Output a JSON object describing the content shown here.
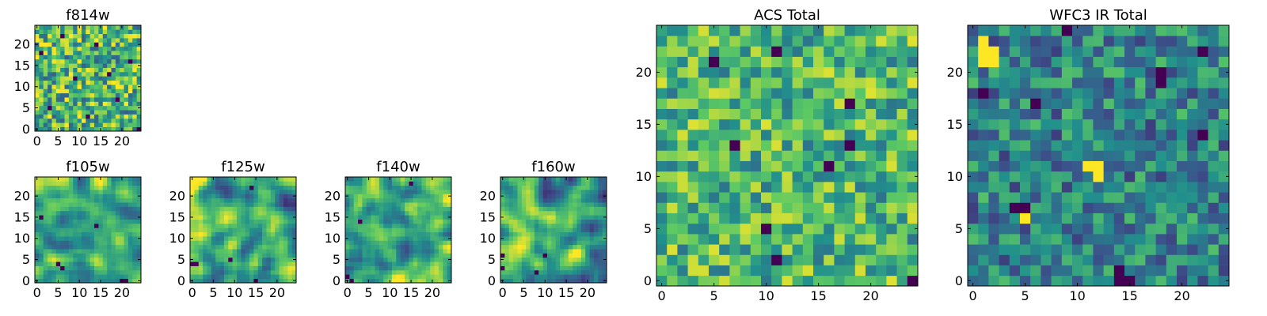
{
  "figure": {
    "background": "#ffffff",
    "colormap": "viridis",
    "colormap_stops": [
      "#440154",
      "#3b528b",
      "#21908c",
      "#5dc963",
      "#fde725"
    ]
  },
  "chart_data": [
    {
      "type": "heatmap",
      "id": "f814w",
      "title": "f814w",
      "grid_size": 25,
      "xticks": [
        0,
        5,
        10,
        15,
        20
      ],
      "yticks": [
        0,
        5,
        10,
        15,
        20
      ],
      "xlim": [
        -0.5,
        24.5
      ],
      "ylim": [
        -0.5,
        24.5
      ],
      "value_range": [
        0,
        1
      ],
      "values_note": "per-pixel noise field; overall greenish-yellow with scattered dark and bright pixels",
      "mean_level": 0.66,
      "spread": 0.16,
      "smoothing": 0,
      "seed": 11,
      "dark_outliers": [
        [
          3,
          5
        ],
        [
          9,
          12
        ],
        [
          14,
          20
        ],
        [
          19,
          7
        ],
        [
          22,
          16
        ],
        [
          6,
          22
        ],
        [
          12,
          3
        ],
        [
          17,
          13
        ],
        [
          24,
          0
        ],
        [
          1,
          18
        ]
      ]
    },
    {
      "type": "heatmap",
      "id": "f105w",
      "title": "f105w",
      "grid_size": 25,
      "xticks": [
        0,
        5,
        10,
        15,
        20
      ],
      "yticks": [
        0,
        5,
        10,
        15,
        20
      ],
      "xlim": [
        -0.5,
        24.5
      ],
      "ylim": [
        -0.5,
        24.5
      ],
      "value_range": [
        0,
        1
      ],
      "mean_level": 0.62,
      "spread": 0.22,
      "smoothing": 2,
      "seed": 23,
      "dark_outliers": [
        [
          20,
          0
        ],
        [
          21,
          0
        ],
        [
          5,
          4
        ],
        [
          6,
          3
        ],
        [
          1,
          15
        ],
        [
          14,
          13
        ]
      ]
    },
    {
      "type": "heatmap",
      "id": "f125w",
      "title": "f125w",
      "grid_size": 25,
      "xticks": [
        0,
        5,
        10,
        15,
        20
      ],
      "yticks": [
        0,
        5,
        10,
        15,
        20
      ],
      "xlim": [
        -0.5,
        24.5
      ],
      "ylim": [
        -0.5,
        24.5
      ],
      "value_range": [
        0,
        1
      ],
      "mean_level": 0.62,
      "spread": 0.22,
      "smoothing": 2,
      "seed": 37,
      "dark_outliers": [
        [
          0,
          4
        ],
        [
          1,
          4
        ],
        [
          9,
          5
        ],
        [
          15,
          0
        ],
        [
          14,
          22
        ]
      ]
    },
    {
      "type": "heatmap",
      "id": "f140w",
      "title": "f140w",
      "grid_size": 25,
      "xticks": [
        0,
        5,
        10,
        15,
        20
      ],
      "yticks": [
        0,
        5,
        10,
        15,
        20
      ],
      "xlim": [
        -0.5,
        24.5
      ],
      "ylim": [
        -0.5,
        24.5
      ],
      "value_range": [
        0,
        1
      ],
      "mean_level": 0.62,
      "spread": 0.22,
      "smoothing": 2,
      "seed": 41,
      "dark_outliers": [
        [
          0,
          1
        ],
        [
          1,
          0
        ],
        [
          15,
          23
        ],
        [
          3,
          14
        ]
      ]
    },
    {
      "type": "heatmap",
      "id": "f160w",
      "title": "f160w",
      "grid_size": 25,
      "xticks": [
        0,
        5,
        10,
        15,
        20
      ],
      "yticks": [
        0,
        5,
        10,
        15,
        20
      ],
      "xlim": [
        -0.5,
        24.5
      ],
      "ylim": [
        -0.5,
        24.5
      ],
      "value_range": [
        0,
        1
      ],
      "mean_level": 0.62,
      "spread": 0.22,
      "smoothing": 2,
      "seed": 53,
      "dark_outliers": [
        [
          0,
          3
        ],
        [
          0,
          6
        ],
        [
          10,
          6
        ],
        [
          8,
          2
        ]
      ]
    },
    {
      "type": "heatmap",
      "id": "acs_total",
      "title": "ACS Total",
      "grid_size": 25,
      "xticks": [
        0,
        5,
        10,
        15,
        20
      ],
      "yticks": [
        0,
        5,
        10,
        15,
        20
      ],
      "xlim": [
        -0.5,
        24.5
      ],
      "ylim": [
        -0.5,
        24.5
      ],
      "value_range": [
        0,
        1
      ],
      "mean_level": 0.67,
      "spread": 0.13,
      "smoothing": 0,
      "seed": 71,
      "dark_outliers": [
        [
          7,
          13
        ],
        [
          18,
          13
        ],
        [
          18,
          17
        ],
        [
          16,
          11
        ],
        [
          11,
          2
        ],
        [
          24,
          0
        ],
        [
          10,
          5
        ],
        [
          5,
          21
        ],
        [
          11,
          22
        ]
      ]
    },
    {
      "type": "heatmap",
      "id": "wfc3_ir_total",
      "title": "WFC3 IR Total",
      "grid_size": 25,
      "xticks": [
        0,
        5,
        10,
        15,
        20
      ],
      "yticks": [
        0,
        5,
        10,
        15,
        20
      ],
      "xlim": [
        -0.5,
        24.5
      ],
      "ylim": [
        -0.5,
        24.5
      ],
      "value_range": [
        0,
        1
      ],
      "mean_level": 0.45,
      "spread": 0.12,
      "smoothing": 0,
      "seed": 89,
      "dark_outliers": [
        [
          4,
          7
        ],
        [
          5,
          7
        ],
        [
          14,
          0
        ],
        [
          15,
          0
        ],
        [
          14,
          1
        ],
        [
          18,
          19
        ],
        [
          18,
          20
        ],
        [
          6,
          17
        ],
        [
          1,
          18
        ],
        [
          22,
          14
        ],
        [
          22,
          22
        ],
        [
          9,
          24
        ]
      ],
      "bright_patches": [
        [
          1,
          23
        ],
        [
          1,
          22
        ],
        [
          2,
          22
        ],
        [
          1,
          21
        ],
        [
          2,
          21
        ],
        [
          11,
          11
        ],
        [
          12,
          11
        ],
        [
          12,
          10
        ],
        [
          5,
          6
        ]
      ]
    }
  ]
}
